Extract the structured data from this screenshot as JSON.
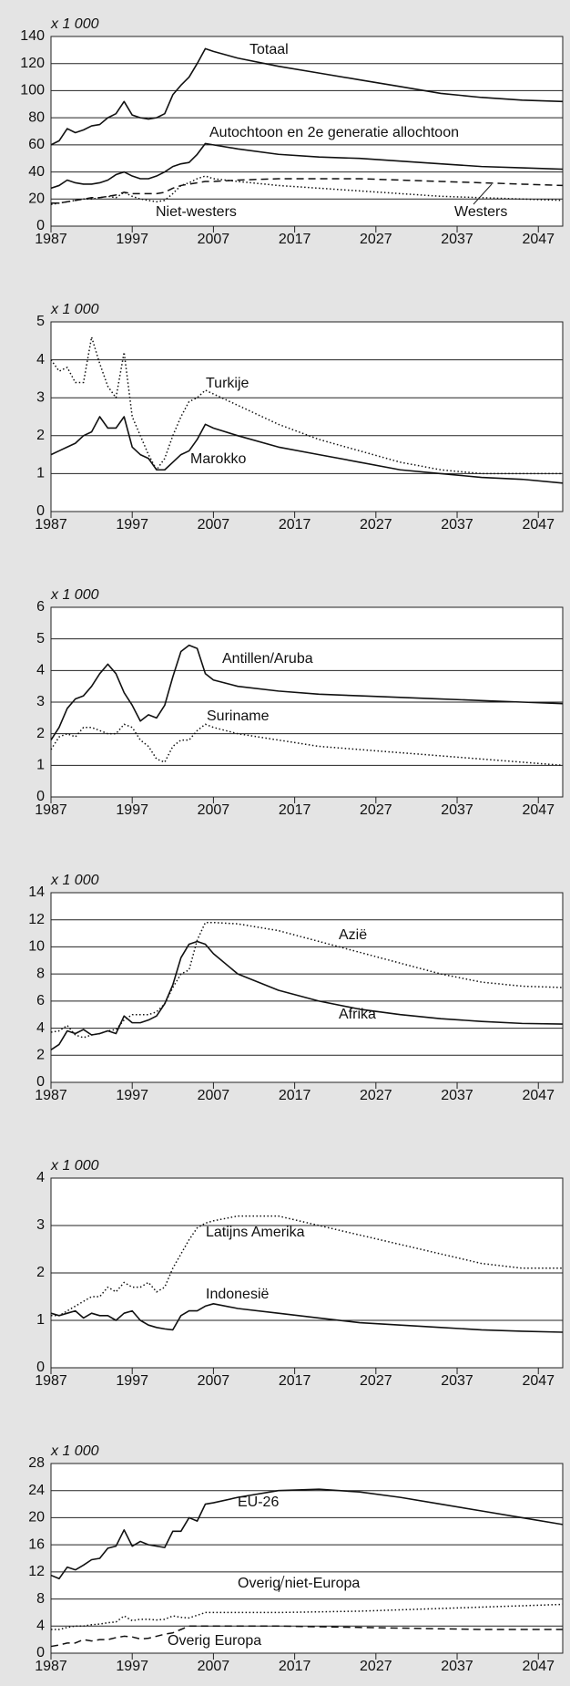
{
  "chart_data": [
    {
      "type": "line",
      "y_label": "x 1 000",
      "xlim": [
        1987,
        2050
      ],
      "ylim": [
        0,
        140
      ],
      "yticks": [
        0,
        20,
        40,
        60,
        80,
        100,
        120,
        140
      ],
      "xticks": [
        1987,
        1997,
        2007,
        2017,
        2027,
        2037,
        2047
      ],
      "x": [
        1987,
        1988,
        1989,
        1990,
        1991,
        1992,
        1993,
        1994,
        1995,
        1996,
        1997,
        1998,
        1999,
        2000,
        2001,
        2002,
        2003,
        2004,
        2005,
        2006,
        2007,
        2010,
        2015,
        2020,
        2025,
        2030,
        2035,
        2040,
        2045,
        2050
      ],
      "series": [
        {
          "name": "Totaal",
          "color": "#111111",
          "dash": "solid",
          "values": [
            60,
            63,
            72,
            69,
            71,
            74,
            75,
            80,
            83,
            92,
            82,
            80,
            79,
            80,
            83,
            97,
            104,
            110,
            120,
            131,
            129,
            124,
            118,
            113,
            108,
            103,
            98,
            95,
            93,
            92
          ]
        },
        {
          "name": "Autochtoon en 2e generatie allochtoon",
          "color": "#111111",
          "dash": "solid",
          "values": [
            28,
            30,
            34,
            32,
            31,
            31,
            32,
            34,
            38,
            40,
            37,
            35,
            35,
            37,
            40,
            44,
            46,
            47,
            53,
            61,
            60,
            57,
            53,
            51,
            50,
            48,
            46,
            44,
            43,
            42
          ]
        },
        {
          "name": "Niet-westers",
          "color": "#111111",
          "dash": "dotted",
          "values": [
            16,
            17,
            18,
            19,
            20,
            20,
            21,
            22,
            21,
            25,
            22,
            20,
            19,
            18,
            19,
            24,
            30,
            32,
            35,
            37,
            35,
            33,
            30,
            28,
            26,
            24,
            22,
            21,
            20,
            19
          ]
        },
        {
          "name": "Westers",
          "color": "#111111",
          "dash": "dashed",
          "values": [
            17,
            17,
            18,
            19,
            20,
            21,
            21,
            22,
            23,
            25,
            24,
            24,
            24,
            24,
            25,
            28,
            30,
            31,
            32,
            33,
            33,
            34,
            35,
            35,
            35,
            34,
            33,
            32,
            31,
            30
          ]
        }
      ]
    },
    {
      "type": "line",
      "y_label": "x 1 000",
      "xlim": [
        1987,
        2050
      ],
      "ylim": [
        0,
        5
      ],
      "yticks": [
        0,
        1,
        2,
        3,
        4,
        5
      ],
      "xticks": [
        1987,
        1997,
        2007,
        2017,
        2027,
        2037,
        2047
      ],
      "x": [
        1987,
        1988,
        1989,
        1990,
        1991,
        1992,
        1993,
        1994,
        1995,
        1996,
        1997,
        1998,
        1999,
        2000,
        2001,
        2002,
        2003,
        2004,
        2005,
        2006,
        2007,
        2010,
        2015,
        2020,
        2025,
        2030,
        2035,
        2040,
        2045,
        2050
      ],
      "series": [
        {
          "name": "Turkije",
          "color": "#111111",
          "dash": "dotted",
          "values": [
            4.0,
            3.7,
            3.8,
            3.4,
            3.4,
            4.6,
            3.9,
            3.3,
            3.0,
            4.2,
            2.5,
            2.0,
            1.5,
            1.1,
            1.4,
            2.0,
            2.5,
            2.9,
            3.0,
            3.2,
            3.1,
            2.8,
            2.3,
            1.9,
            1.6,
            1.3,
            1.1,
            1.0,
            1.0,
            1.0
          ]
        },
        {
          "name": "Marokko",
          "color": "#111111",
          "dash": "solid",
          "values": [
            1.5,
            1.6,
            1.7,
            1.8,
            2.0,
            2.1,
            2.5,
            2.2,
            2.2,
            2.5,
            1.7,
            1.5,
            1.4,
            1.1,
            1.1,
            1.3,
            1.5,
            1.6,
            1.9,
            2.3,
            2.2,
            2.0,
            1.7,
            1.5,
            1.3,
            1.1,
            1.0,
            0.9,
            0.85,
            0.75
          ]
        }
      ]
    },
    {
      "type": "line",
      "y_label": "x 1 000",
      "xlim": [
        1987,
        2050
      ],
      "ylim": [
        0,
        6
      ],
      "yticks": [
        0,
        1,
        2,
        3,
        4,
        5,
        6
      ],
      "xticks": [
        1987,
        1997,
        2007,
        2017,
        2027,
        2037,
        2047
      ],
      "x": [
        1987,
        1988,
        1989,
        1990,
        1991,
        1992,
        1993,
        1994,
        1995,
        1996,
        1997,
        1998,
        1999,
        2000,
        2001,
        2002,
        2003,
        2004,
        2005,
        2006,
        2007,
        2010,
        2015,
        2020,
        2025,
        2030,
        2035,
        2040,
        2045,
        2050
      ],
      "series": [
        {
          "name": "Antillen/Aruba",
          "color": "#111111",
          "dash": "solid",
          "values": [
            1.8,
            2.2,
            2.8,
            3.1,
            3.2,
            3.5,
            3.9,
            4.2,
            3.9,
            3.3,
            2.9,
            2.4,
            2.6,
            2.5,
            2.9,
            3.8,
            4.6,
            4.8,
            4.7,
            3.9,
            3.7,
            3.5,
            3.35,
            3.25,
            3.2,
            3.15,
            3.1,
            3.05,
            3.0,
            2.95
          ]
        },
        {
          "name": "Suriname",
          "color": "#111111",
          "dash": "dotted",
          "values": [
            1.5,
            1.9,
            2.0,
            1.9,
            2.2,
            2.2,
            2.1,
            2.0,
            2.0,
            2.3,
            2.2,
            1.8,
            1.6,
            1.2,
            1.1,
            1.6,
            1.8,
            1.8,
            2.1,
            2.3,
            2.2,
            2.0,
            1.8,
            1.6,
            1.5,
            1.4,
            1.3,
            1.2,
            1.1,
            1.0
          ]
        }
      ]
    },
    {
      "type": "line",
      "y_label": "x 1 000",
      "xlim": [
        1987,
        2050
      ],
      "ylim": [
        0,
        14
      ],
      "yticks": [
        0,
        2,
        4,
        6,
        8,
        10,
        12,
        14
      ],
      "xticks": [
        1987,
        1997,
        2007,
        2017,
        2027,
        2037,
        2047
      ],
      "x": [
        1987,
        1988,
        1989,
        1990,
        1991,
        1992,
        1993,
        1994,
        1995,
        1996,
        1997,
        1998,
        1999,
        2000,
        2001,
        2002,
        2003,
        2004,
        2005,
        2006,
        2007,
        2010,
        2015,
        2020,
        2025,
        2030,
        2035,
        2040,
        2045,
        2050
      ],
      "series": [
        {
          "name": "Azië",
          "color": "#111111",
          "dash": "dotted",
          "values": [
            3.7,
            3.8,
            4.2,
            3.5,
            3.3,
            3.5,
            3.6,
            3.8,
            3.9,
            4.6,
            5.0,
            5.0,
            5.0,
            5.2,
            5.8,
            7.0,
            8.0,
            8.3,
            10.5,
            11.8,
            11.8,
            11.7,
            11.2,
            10.4,
            9.6,
            8.8,
            8.0,
            7.4,
            7.1,
            7.0
          ]
        },
        {
          "name": "Afrika",
          "color": "#111111",
          "dash": "solid",
          "values": [
            2.4,
            2.8,
            3.8,
            3.6,
            3.9,
            3.5,
            3.6,
            3.8,
            3.6,
            4.9,
            4.4,
            4.4,
            4.6,
            4.9,
            5.8,
            7.2,
            9.2,
            10.2,
            10.4,
            10.2,
            9.5,
            8.0,
            6.8,
            6.0,
            5.4,
            5.0,
            4.7,
            4.5,
            4.35,
            4.3
          ]
        }
      ]
    },
    {
      "type": "line",
      "y_label": "x 1 000",
      "xlim": [
        1987,
        2050
      ],
      "ylim": [
        0,
        4
      ],
      "yticks": [
        0,
        1,
        2,
        3,
        4
      ],
      "xticks": [
        1987,
        1997,
        2007,
        2017,
        2027,
        2037,
        2047
      ],
      "x": [
        1987,
        1988,
        1989,
        1990,
        1991,
        1992,
        1993,
        1994,
        1995,
        1996,
        1997,
        1998,
        1999,
        2000,
        2001,
        2002,
        2003,
        2004,
        2005,
        2006,
        2007,
        2010,
        2015,
        2020,
        2025,
        2030,
        2035,
        2040,
        2045,
        2050
      ],
      "series": [
        {
          "name": "Latijns Amerika",
          "color": "#111111",
          "dash": "dotted",
          "values": [
            1.1,
            1.1,
            1.2,
            1.3,
            1.4,
            1.5,
            1.5,
            1.7,
            1.6,
            1.8,
            1.7,
            1.7,
            1.8,
            1.6,
            1.7,
            2.1,
            2.4,
            2.7,
            2.95,
            3.05,
            3.1,
            3.2,
            3.2,
            3.0,
            2.8,
            2.6,
            2.4,
            2.2,
            2.1,
            2.1
          ]
        },
        {
          "name": "Indonesië",
          "color": "#111111",
          "dash": "solid",
          "values": [
            1.15,
            1.1,
            1.15,
            1.2,
            1.05,
            1.15,
            1.1,
            1.1,
            1.0,
            1.15,
            1.2,
            1.0,
            0.9,
            0.85,
            0.82,
            0.8,
            1.1,
            1.2,
            1.2,
            1.3,
            1.35,
            1.25,
            1.15,
            1.05,
            0.95,
            0.9,
            0.85,
            0.8,
            0.77,
            0.75
          ]
        }
      ]
    },
    {
      "type": "line",
      "y_label": "x 1 000",
      "xlim": [
        1987,
        2050
      ],
      "ylim": [
        0,
        28
      ],
      "yticks": [
        0,
        4,
        8,
        12,
        16,
        20,
        24,
        28
      ],
      "xticks": [
        1987,
        1997,
        2007,
        2017,
        2027,
        2037,
        2047
      ],
      "x": [
        1987,
        1988,
        1989,
        1990,
        1991,
        1992,
        1993,
        1994,
        1995,
        1996,
        1997,
        1998,
        1999,
        2000,
        2001,
        2002,
        2003,
        2004,
        2005,
        2006,
        2007,
        2010,
        2015,
        2020,
        2025,
        2030,
        2035,
        2040,
        2045,
        2050
      ],
      "series": [
        {
          "name": "EU-26",
          "color": "#111111",
          "dash": "solid",
          "values": [
            11.5,
            11,
            12.7,
            12.3,
            13,
            13.8,
            14,
            15.5,
            15.8,
            18.2,
            15.8,
            16.5,
            16,
            15.8,
            15.6,
            18,
            18,
            20,
            19.5,
            22,
            22.2,
            23,
            24,
            24.2,
            23.8,
            23,
            22,
            21,
            20,
            19
          ]
        },
        {
          "name": "Overig niet-Europa",
          "color": "#111111",
          "dash": "dotted",
          "values": [
            3.5,
            3.5,
            3.8,
            4.0,
            4.0,
            4.2,
            4.3,
            4.5,
            4.6,
            5.5,
            4.8,
            5.0,
            5.0,
            4.9,
            5.0,
            5.5,
            5.3,
            5.2,
            5.6,
            6.0,
            6.0,
            6.0,
            6.0,
            6.1,
            6.2,
            6.4,
            6.6,
            6.8,
            7.0,
            7.2
          ]
        },
        {
          "name": "Overig Europa",
          "color": "#111111",
          "dash": "dashed",
          "values": [
            1.0,
            1.2,
            1.5,
            1.5,
            2.0,
            1.8,
            2.0,
            2.0,
            2.3,
            2.5,
            2.4,
            2.1,
            2.2,
            2.5,
            2.8,
            3.0,
            3.5,
            4.0,
            4.0,
            4.0,
            4.0,
            4.0,
            4.0,
            3.9,
            3.8,
            3.7,
            3.6,
            3.5,
            3.5,
            3.5
          ]
        }
      ]
    }
  ]
}
